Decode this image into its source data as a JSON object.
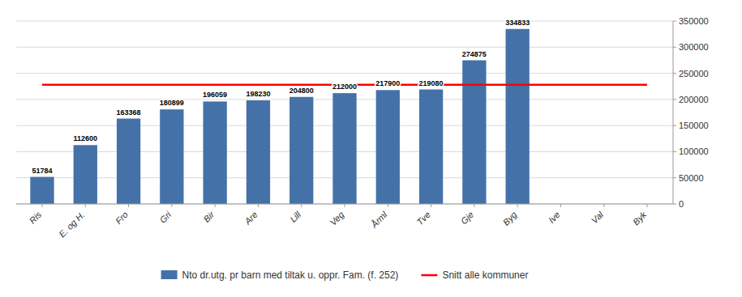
{
  "chart_data": {
    "type": "bar",
    "categories": [
      "Ris",
      "E. og H.",
      "Fro",
      "Gri",
      "Bir",
      "Are",
      "Lill",
      "Veg",
      "Årml",
      "Tve",
      "Gje",
      "Byg",
      "Ive",
      "Val",
      "Byk"
    ],
    "series": [
      {
        "name": "Nto dr.utg. pr barn med tiltak u. oppr. Fam. (f. 252)",
        "type": "bar",
        "color": "#4472a8",
        "values": [
          51784,
          112600,
          163368,
          180899,
          196059,
          198230,
          204800,
          212000,
          217900,
          219080,
          274875,
          334833,
          0,
          0,
          0
        ],
        "value_labels": [
          "51784",
          "112600",
          "163368",
          "180899",
          "196059",
          "198230",
          "204800",
          "212000",
          "217900",
          "219080",
          "274875",
          "334833",
          null,
          null,
          null
        ]
      },
      {
        "name": "Snitt alle kommuner",
        "type": "line",
        "color": "#ff0000",
        "values": [
          228000,
          228000,
          228000,
          228000,
          228000,
          228000,
          228000,
          228000,
          228000,
          228000,
          228000,
          228000,
          228000,
          228000,
          228000
        ]
      }
    ],
    "ylim": [
      0,
      350000
    ],
    "yticks": [
      0,
      50000,
      100000,
      150000,
      200000,
      250000,
      300000,
      350000
    ],
    "grid": true,
    "data_labels": true,
    "legend": "bottom"
  }
}
